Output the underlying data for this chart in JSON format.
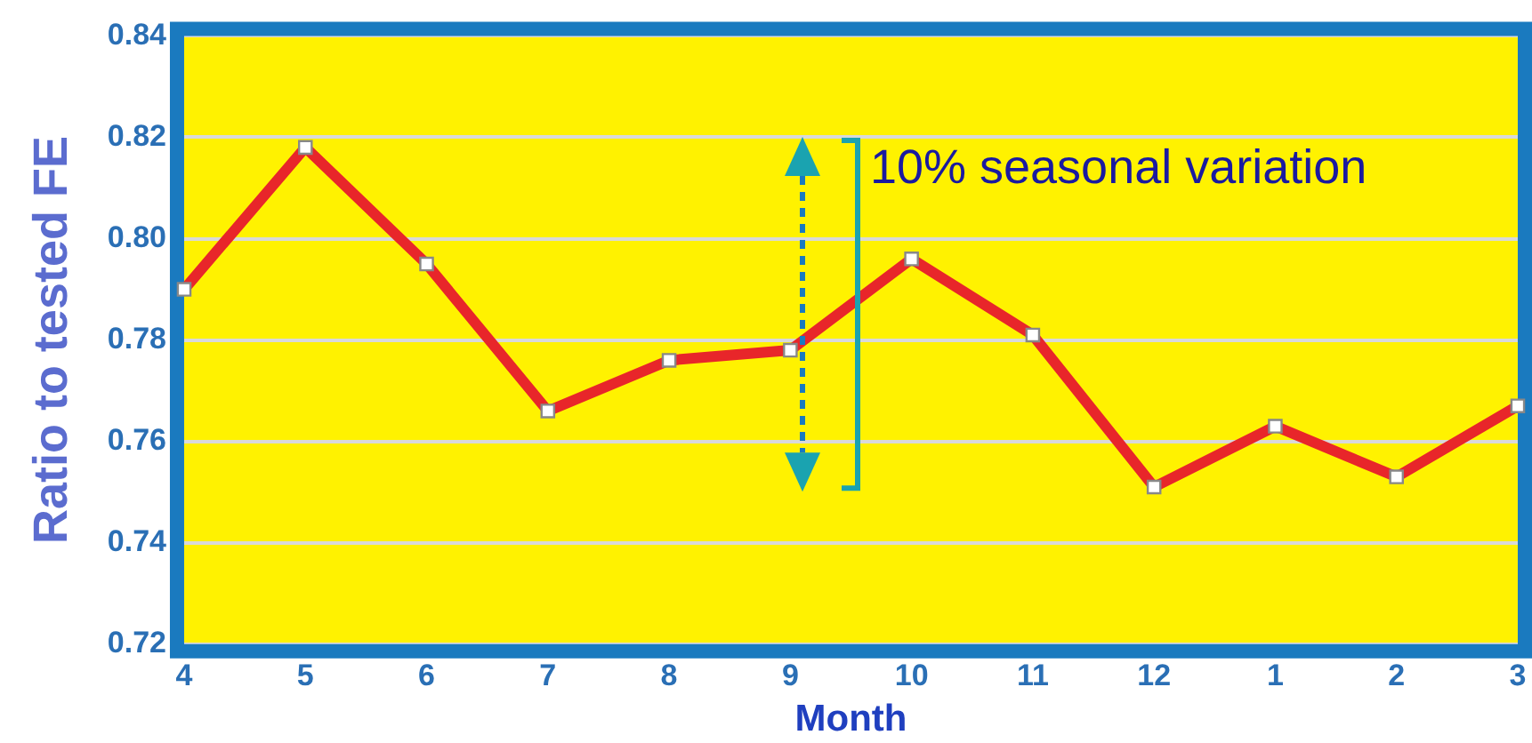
{
  "chart_data": {
    "type": "line",
    "xlabel": "Month",
    "ylabel": "Ratio to tested FE",
    "categories": [
      "4",
      "5",
      "6",
      "7",
      "8",
      "9",
      "10",
      "11",
      "12",
      "1",
      "2",
      "3"
    ],
    "series": [
      {
        "color": "#e8262a",
        "values": [
          0.79,
          0.818,
          0.795,
          0.766,
          0.776,
          0.778,
          0.796,
          0.781,
          0.751,
          0.763,
          0.753,
          0.767
        ]
      }
    ],
    "ylim": [
      0.72,
      0.84
    ],
    "yticks": [
      0.72,
      0.74,
      0.76,
      0.78,
      {
        "value": 0.8,
        "label": "0.80"
      },
      0.82,
      0.84
    ],
    "grid": "y",
    "legend": false,
    "marker": "square",
    "line_style": "solid",
    "annotations": [
      "10% seasonal variation"
    ]
  }
}
